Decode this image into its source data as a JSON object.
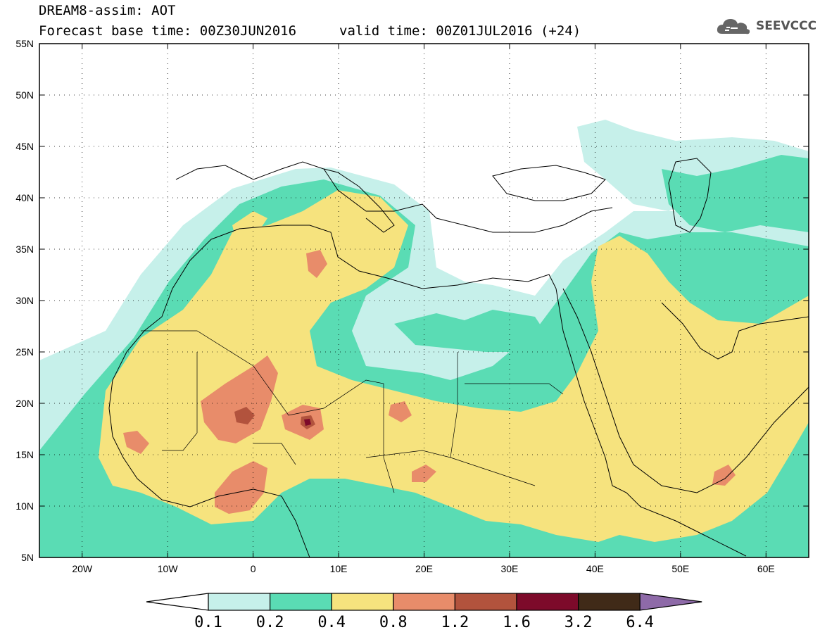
{
  "header": {
    "line1": "DREAM8-assim: AOT",
    "line2_left": "Forecast base time: 00Z30JUN2016",
    "line2_right": "valid time: 00Z01JUL2016 (+24)"
  },
  "logo": {
    "text": "SEEVCCC",
    "icon": "cloud-logo-icon"
  },
  "map": {
    "lon_range": [
      -25,
      65
    ],
    "lat_range": [
      5,
      55
    ],
    "lat_labels": [
      "55N",
      "50N",
      "45N",
      "40N",
      "35N",
      "30N",
      "25N",
      "20N",
      "15N",
      "10N",
      "5N"
    ],
    "lat_values": [
      55,
      50,
      45,
      40,
      35,
      30,
      25,
      20,
      15,
      10,
      5
    ],
    "lon_labels": [
      "20W",
      "10W",
      "0",
      "10E",
      "20E",
      "30E",
      "40E",
      "50E",
      "60E"
    ],
    "lon_values": [
      -20,
      -10,
      0,
      10,
      20,
      30,
      40,
      50,
      60
    ],
    "grid": "dotted"
  },
  "colorbar": {
    "labels": [
      "0.1",
      "0.2",
      "0.4",
      "0.8",
      "1.2",
      "1.6",
      "3.2",
      "6.4"
    ],
    "colors": [
      "#ffffff",
      "#c6f0ea",
      "#5adcb4",
      "#f6e37e",
      "#e88c6a",
      "#b2533d",
      "#7d0a2a",
      "#402a18",
      "#8e6aa8"
    ]
  }
}
